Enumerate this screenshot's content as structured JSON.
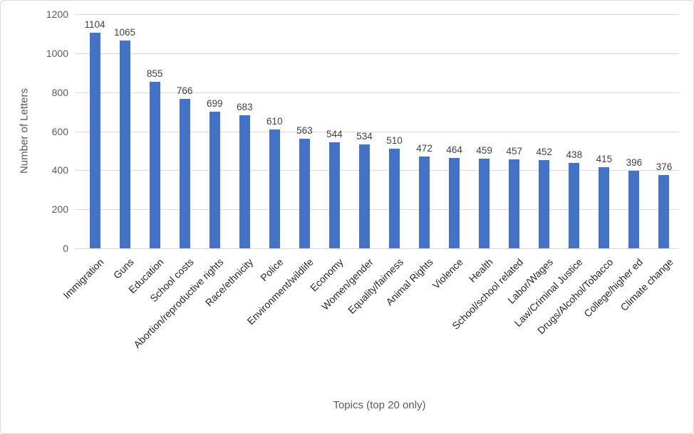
{
  "chart_data": {
    "type": "bar",
    "title": "",
    "xlabel": "Topics (top 20 only)",
    "ylabel": "Number of Letters",
    "categories": [
      "Immigration",
      "Guns",
      "Education",
      "School costs",
      "Abortion/reproductive rights",
      "Race/ethnicity",
      "Police",
      "Environment/wildlife",
      "Economy",
      "Women/gender",
      "Equality/fairness",
      "Animal Rights",
      "Violence",
      "Health",
      "School/school related",
      "Labor/Wages",
      "Law/Criminal Justice",
      "Drugs/Alcohol/Tobacco",
      "College/higher ed",
      "Climate change"
    ],
    "values": [
      1104,
      1065,
      855,
      766,
      699,
      683,
      610,
      563,
      544,
      534,
      510,
      472,
      464,
      459,
      457,
      452,
      438,
      415,
      396,
      376
    ],
    "ylim": [
      0,
      1200
    ],
    "yticks": [
      0,
      200,
      400,
      600,
      800,
      1000,
      1200
    ],
    "grid": "horizontal",
    "legend": "none",
    "data_labels": true,
    "category_label_rotation_deg": 45
  },
  "colors": {
    "bar": "#4472C4",
    "gridline": "#D9D9D9",
    "tick_label": "#595959",
    "axis_title": "#595959",
    "value_label": "#404040",
    "category_label": "#262626",
    "chart_border": "#D9D9D9",
    "background": "#FFFFFF"
  }
}
